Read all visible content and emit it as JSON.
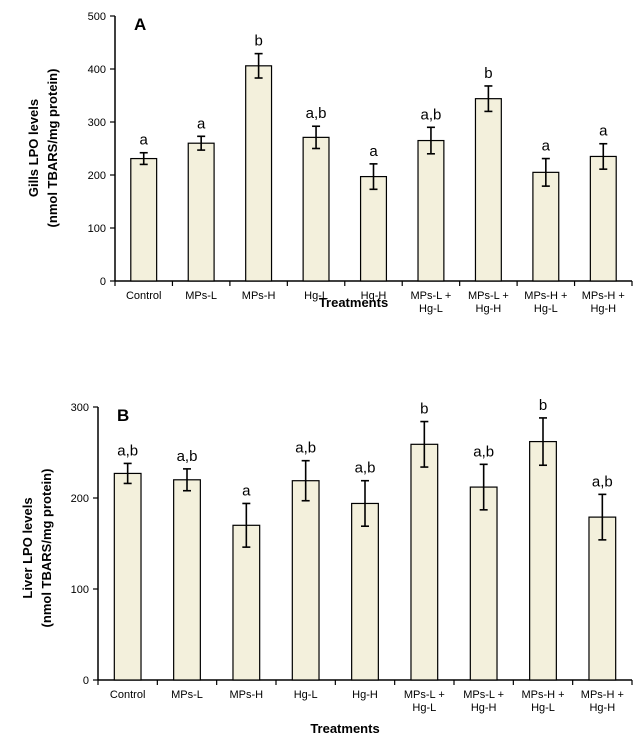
{
  "chart_data": [
    {
      "type": "bar",
      "panel_label": "A",
      "ylabel": [
        "Gills LPO levels",
        "(nmol TBARS/mg protein)"
      ],
      "xlabel": "Treatments",
      "ylim": [
        0,
        500
      ],
      "yticks": [
        0,
        100,
        200,
        300,
        400,
        500
      ],
      "categories": [
        [
          "Control"
        ],
        [
          "MPs-L"
        ],
        [
          "MPs-H"
        ],
        [
          "Hg-L"
        ],
        [
          "Hg-H"
        ],
        [
          "MPs-L +",
          "Hg-L"
        ],
        [
          "MPs-L +",
          "Hg-H"
        ],
        [
          "MPs-H +",
          "Hg-L"
        ],
        [
          "MPs-H +",
          "Hg-H"
        ]
      ],
      "values": [
        231,
        260,
        406,
        271,
        197,
        265,
        344,
        205,
        235
      ],
      "errors": [
        11,
        13,
        23,
        21,
        24,
        25,
        24,
        26,
        24
      ],
      "significance": [
        "a",
        "a",
        "b",
        "a,b",
        "a",
        "a,b",
        "b",
        "a",
        "a"
      ],
      "grid": false,
      "bar_color": "#f3f0dc"
    },
    {
      "type": "bar",
      "panel_label": "B",
      "ylabel": [
        "Liver LPO levels",
        "(nmol TBARS/mg protein)"
      ],
      "xlabel": "Treatments",
      "ylim": [
        0,
        300
      ],
      "yticks": [
        0,
        100,
        200,
        300
      ],
      "categories": [
        [
          "Control"
        ],
        [
          "MPs-L"
        ],
        [
          "MPs-H"
        ],
        [
          "Hg-L"
        ],
        [
          "Hg-H"
        ],
        [
          "MPs-L +",
          "Hg-L"
        ],
        [
          "MPs-L +",
          "Hg-H"
        ],
        [
          "MPs-H +",
          "Hg-L"
        ],
        [
          "MPs-H +",
          "Hg-H"
        ]
      ],
      "values": [
        227,
        220,
        170,
        219,
        194,
        259,
        212,
        262,
        179
      ],
      "errors": [
        11,
        12,
        24,
        22,
        25,
        25,
        25,
        26,
        25
      ],
      "significance": [
        "a,b",
        "a,b",
        "a",
        "a,b",
        "a,b",
        "b",
        "a,b",
        "b",
        "a,b"
      ],
      "grid": false,
      "bar_color": "#f3f0dc"
    }
  ]
}
